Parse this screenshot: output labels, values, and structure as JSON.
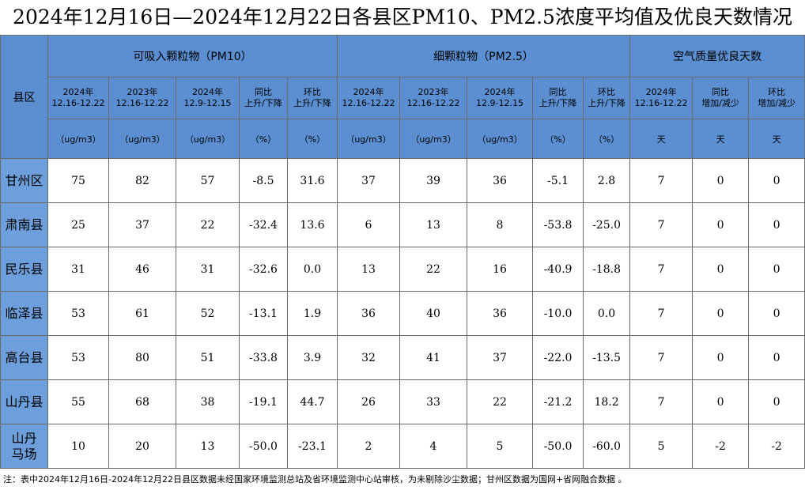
{
  "title": "2024年12月16日—2024年12月22日各县区PM10、PM2.5浓度平均值及优良天数情况",
  "row_header": "县区",
  "groups": [
    {
      "label": "可吸入颗粒物（PM10）",
      "columns": [
        {
          "period": "2024年\n12.16-12.22",
          "unit": "（ug/m3）"
        },
        {
          "period": "2023年\n12.16-12.22",
          "unit": "（ug/m3）"
        },
        {
          "period": "2024年\n12.9-12.15",
          "unit": "（ug/m3）"
        },
        {
          "period": "同比\n上升/下降",
          "unit": "（%）"
        },
        {
          "period": "环比\n上升/下降",
          "unit": "（%）"
        }
      ]
    },
    {
      "label": "细颗粒物（PM2.5）",
      "columns": [
        {
          "period": "2024年\n12.16-12.22",
          "unit": "（ug/m3）"
        },
        {
          "period": "2023年\n12.16-12.22",
          "unit": "（ug/m3）"
        },
        {
          "period": "2024年\n12.9-12.15",
          "unit": "（ug/m3）"
        },
        {
          "period": "同比\n上升/下降",
          "unit": "（%）"
        },
        {
          "period": "环比\n上升/下降",
          "unit": "（%）"
        }
      ]
    },
    {
      "label": "空气质量优良天数",
      "columns": [
        {
          "period": "2024年\n12.16-12.22",
          "unit": "天"
        },
        {
          "period": "同比\n增加/减少",
          "unit": "天"
        },
        {
          "period": "环比\n增加/减少",
          "unit": "天"
        }
      ]
    }
  ],
  "rows": [
    {
      "name": "甘州区",
      "values": [
        "75",
        "82",
        "57",
        "-8.5",
        "31.6",
        "37",
        "39",
        "36",
        "-5.1",
        "2.8",
        "7",
        "0",
        "0"
      ]
    },
    {
      "name": "肃南县",
      "values": [
        "25",
        "37",
        "22",
        "-32.4",
        "13.6",
        "6",
        "13",
        "8",
        "-53.8",
        "-25.0",
        "7",
        "0",
        "0"
      ]
    },
    {
      "name": "民乐县",
      "values": [
        "31",
        "46",
        "31",
        "-32.6",
        "0.0",
        "13",
        "22",
        "16",
        "-40.9",
        "-18.8",
        "7",
        "0",
        "0"
      ]
    },
    {
      "name": "临泽县",
      "values": [
        "53",
        "61",
        "52",
        "-13.1",
        "1.9",
        "36",
        "40",
        "36",
        "-10.0",
        "0.0",
        "7",
        "0",
        "0"
      ]
    },
    {
      "name": "高台县",
      "values": [
        "53",
        "80",
        "51",
        "-33.8",
        "3.9",
        "32",
        "41",
        "37",
        "-22.0",
        "-13.5",
        "7",
        "0",
        "0"
      ]
    },
    {
      "name": "山丹县",
      "values": [
        "55",
        "68",
        "38",
        "-19.1",
        "44.7",
        "26",
        "33",
        "22",
        "-21.2",
        "18.2",
        "7",
        "0",
        "0"
      ]
    },
    {
      "name": "山丹\n马场",
      "values": [
        "10",
        "20",
        "13",
        "-50.0",
        "-23.1",
        "2",
        "4",
        "5",
        "-50.0",
        "-60.0",
        "5",
        "-2",
        "-2"
      ]
    }
  ],
  "note": "注：表中2024年12月16日-2024年12月22日县区数据未经国家环境监测总站及省环境监测中心站审核，为未剔除沙尘数据；甘州区数据为国网+省网融合数据 。"
}
